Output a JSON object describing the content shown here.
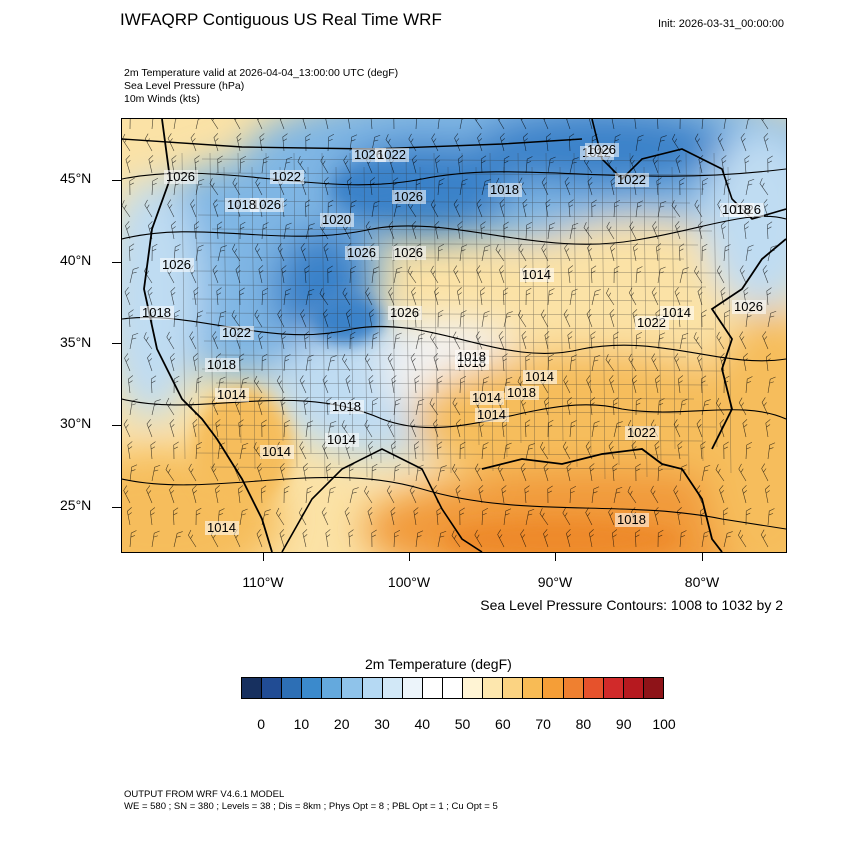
{
  "header": {
    "title": "IWFAQRP Contiguous US Real Time WRF",
    "init": "Init: 2026-03-31_00:00:00",
    "subtitle_lines": [
      "2m Temperature valid at 2026-04-04_13:00:00 UTC   (degF)",
      "Sea Level Pressure   (hPa)",
      "10m Winds   (kts)"
    ]
  },
  "map": {
    "lat_labels": [
      "45°N",
      "40°N",
      "35°N",
      "30°N",
      "25°N"
    ],
    "lon_labels": [
      "110°W",
      "100°W",
      "90°W",
      "80°W"
    ],
    "contour_note": "Sea Level Pressure Contours: 1008 to 1032 by 2",
    "pressure_labels": [
      "1026",
      "1022",
      "1026",
      "1026",
      "1018",
      "1026",
      "1022",
      "1022",
      "1022",
      "1026",
      "1026",
      "1018",
      "1014",
      "1022",
      "1018",
      "1018",
      "1014",
      "1026",
      "1020",
      "1026",
      "1018",
      "1014",
      "1018",
      "1022",
      "1018",
      "1014",
      "1014",
      "1014",
      "1018",
      "1022",
      "1026",
      "1026",
      "1014",
      "1014",
      "1014",
      "1018",
      "1026",
      "1018"
    ],
    "colors": {
      "cold_deep": "#3a82c9",
      "cold": "#7fb6e4",
      "cool": "#bfdcf2",
      "neutral": "#f2f2f2",
      "warm_light": "#fbe2a6",
      "warm": "#f6bd5c",
      "hot": "#f19a3a",
      "hot_deep": "#ee8a2b"
    }
  },
  "colorbar": {
    "title": "2m Temperature  (degF)",
    "colors": [
      "#17305f",
      "#214c94",
      "#2d6fb5",
      "#3b8acc",
      "#64a9dd",
      "#8fc3ea",
      "#b5d9f3",
      "#d2e8f7",
      "#ecf4fa",
      "#ffffff",
      "#ffffff",
      "#fff4d4",
      "#fde7ae",
      "#fbd382",
      "#f8bb55",
      "#f59e37",
      "#ef8030",
      "#e6522c",
      "#d12a2a",
      "#b6191f",
      "#8e1318"
    ],
    "labels": [
      "0",
      "10",
      "20",
      "30",
      "40",
      "50",
      "60",
      "70",
      "80",
      "90",
      "100"
    ]
  },
  "footer": {
    "line1": "OUTPUT FROM WRF V4.6.1 MODEL",
    "line2": "WE = 580 ; SN = 380 ; Levels = 38 ; Dis = 8km ; Phys Opt = 8 ; PBL Opt = 1 ; Cu Opt = 5"
  }
}
